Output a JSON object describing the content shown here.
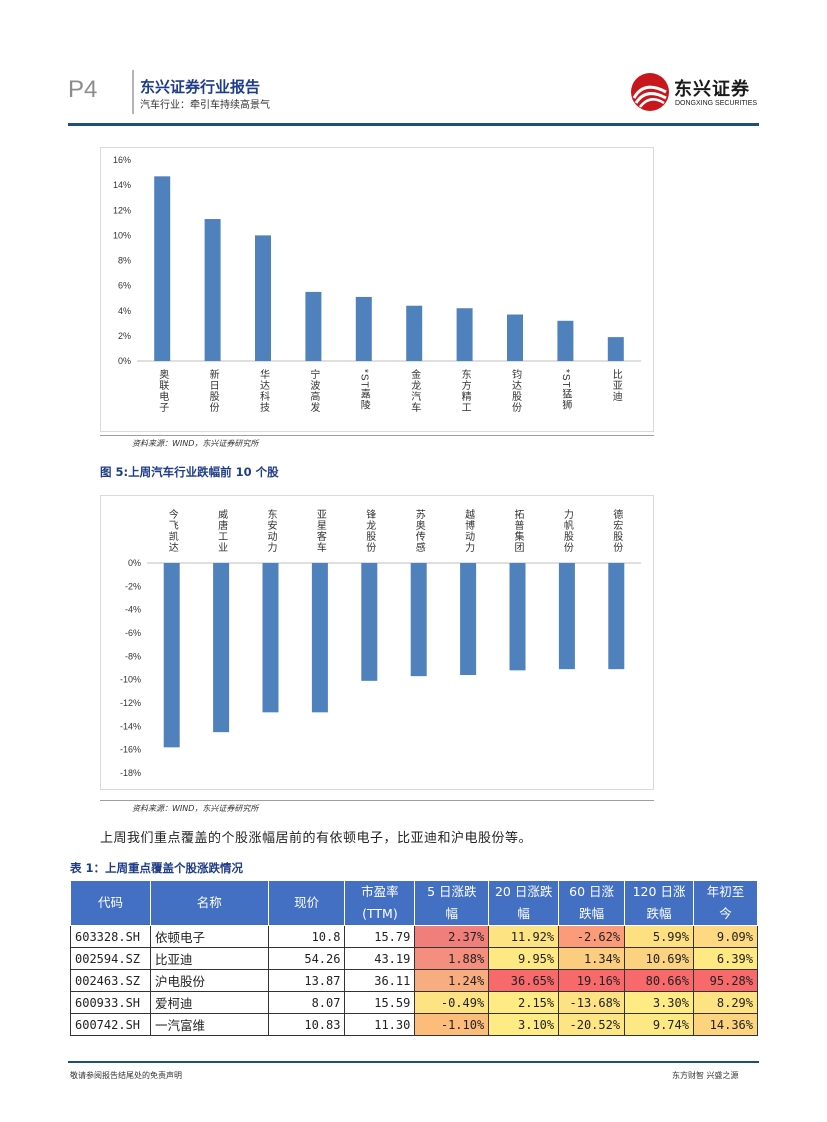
{
  "header": {
    "page_num": "P4",
    "report_title": "东兴证券行业报告",
    "report_subtitle": "汽车行业：牵引车持续高景气",
    "logo_cn": "东兴证券",
    "logo_en": "DONGXING SECURITIES",
    "brand_color": "#c8161d"
  },
  "chart_data": [
    {
      "type": "bar",
      "title": "",
      "categories": [
        "奥联电子",
        "新日股份",
        "华达科技",
        "宁波高发",
        "*ST嘉陵",
        "金龙汽车",
        "东方精工",
        "钧达股份",
        "*ST猛狮",
        "比亚迪"
      ],
      "values": [
        14.7,
        11.3,
        10.0,
        5.5,
        5.1,
        4.4,
        4.2,
        3.7,
        3.2,
        1.9
      ],
      "ylim": [
        0,
        16
      ],
      "yticks": [
        "0%",
        "2%",
        "4%",
        "6%",
        "8%",
        "10%",
        "12%",
        "14%",
        "16%"
      ],
      "unit": "%",
      "bar_color": "#4f81bd",
      "grid": false
    },
    {
      "type": "bar",
      "title": "图 5:上周汽车行业跌幅前 10 个股",
      "categories": [
        "今飞凯达",
        "威唐工业",
        "东安动力",
        "亚星客车",
        "锋龙股份",
        "苏奥传感",
        "越博动力",
        "拓普集团",
        "力帆股份",
        "德宏股份"
      ],
      "values": [
        -15.8,
        -14.5,
        -12.8,
        -12.8,
        -10.1,
        -9.7,
        -9.6,
        -9.2,
        -9.1,
        -9.1
      ],
      "ylim": [
        -18,
        0
      ],
      "yticks": [
        "0%",
        "-2%",
        "-4%",
        "-6%",
        "-8%",
        "-10%",
        "-12%",
        "-14%",
        "-16%",
        "-18%"
      ],
      "unit": "%",
      "bar_color": "#4f81bd",
      "grid": false
    }
  ],
  "sources": {
    "chart1": "资料来源：WIND，东兴证券研究所",
    "chart2": "资料来源：WIND，东兴证券研究所"
  },
  "body_text": "上周我们重点覆盖的个股涨幅居前的有依顿电子，比亚迪和沪电股份等。",
  "table": {
    "caption": "表 1：上周重点覆盖个股涨跌情况",
    "headers": [
      "代码",
      "名称",
      "现价",
      "市盈率(TTM)",
      "5 日涨跌幅",
      "20 日涨跌幅",
      "60 日涨跌幅",
      "120 日涨跌幅",
      "年初至今"
    ],
    "header_lines": [
      [
        "代码"
      ],
      [
        "名称"
      ],
      [
        "现价"
      ],
      [
        "市盈率",
        "(TTM)"
      ],
      [
        "5 日涨跌",
        "幅"
      ],
      [
        "20 日涨跌",
        "幅"
      ],
      [
        "60 日涨",
        "跌幅"
      ],
      [
        "120 日涨",
        "跌幅"
      ],
      [
        "年初至",
        "今"
      ]
    ],
    "rows": [
      {
        "code": "603328.SH",
        "name": "依顿电子",
        "price": "10.8",
        "pe": "15.79",
        "d5": "2.37%",
        "d20": "11.92%",
        "d60": "-2.62%",
        "d120": "5.99%",
        "ytd": "9.09%",
        "colors": [
          "#f07f7b",
          "#fee383",
          "#fb9b79",
          "#fee081",
          "#fed981"
        ]
      },
      {
        "code": "002594.SZ",
        "name": "比亚迪",
        "price": "54.26",
        "pe": "43.19",
        "d5": "1.88%",
        "d20": "9.95%",
        "d60": "1.34%",
        "d120": "10.69%",
        "ytd": "6.39%",
        "colors": [
          "#f48e7f",
          "#fee883",
          "#fccd7e",
          "#fbd27f",
          "#fee983"
        ]
      },
      {
        "code": "002463.SZ",
        "name": "沪电股份",
        "price": "13.87",
        "pe": "36.11",
        "d5": "1.24%",
        "d20": "36.65%",
        "d60": "19.16%",
        "d120": "80.66%",
        "ytd": "95.28%",
        "colors": [
          "#f8ad81",
          "#f8696b",
          "#f8696b",
          "#f8696b",
          "#f8696b"
        ]
      },
      {
        "code": "600933.SH",
        "name": "爱柯迪",
        "price": "8.07",
        "pe": "15.59",
        "d5": "-0.49%",
        "d20": "2.15%",
        "d60": "-13.68%",
        "d120": "3.30%",
        "ytd": "8.29%",
        "colors": [
          "#fee383",
          "#ffeb84",
          "#fde283",
          "#ffeb84",
          "#fee383"
        ]
      },
      {
        "code": "600742.SH",
        "name": "一汽富维",
        "price": "10.83",
        "pe": "11.30",
        "d5": "-1.10%",
        "d20": "3.10%",
        "d60": "-20.52%",
        "d120": "9.74%",
        "ytd": "14.36%",
        "colors": [
          "#fcbd7b",
          "#ffeb84",
          "#fee583",
          "#fde983",
          "#fed380"
        ]
      }
    ]
  },
  "footer": {
    "left": "敬请参阅报告结尾处的免责声明",
    "right": "东方财智 兴盛之源"
  }
}
